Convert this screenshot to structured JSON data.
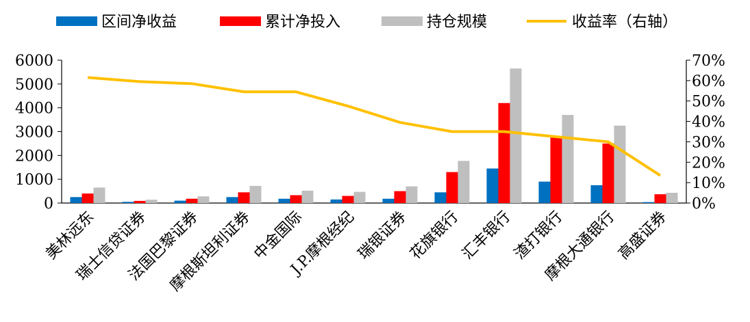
{
  "chart_data": {
    "type": "bar",
    "categories": [
      "美林远东",
      "瑞士信贷证券",
      "法国巴黎证券",
      "摩根斯坦利证券",
      "中金国际",
      "J.P.摩根经纪",
      "瑞银证券",
      "花旗银行",
      "汇丰银行",
      "渣打银行",
      "摩根大通银行",
      "高盛证券"
    ],
    "series": [
      {
        "name": "区间净收益",
        "kind": "bar",
        "axis": "left",
        "color": "#0070C0",
        "values": [
          250,
          50,
          100,
          250,
          180,
          150,
          180,
          450,
          1450,
          900,
          750,
          40
        ]
      },
      {
        "name": "累计净投入",
        "kind": "bar",
        "axis": "left",
        "color": "#FF0000",
        "values": [
          400,
          90,
          180,
          450,
          330,
          300,
          500,
          1300,
          4200,
          2750,
          2500,
          370
        ]
      },
      {
        "name": "持仓规模",
        "kind": "bar",
        "axis": "left",
        "color": "#BFBFBF",
        "values": [
          650,
          140,
          280,
          720,
          520,
          470,
          700,
          1770,
          5650,
          3700,
          3250,
          430
        ]
      },
      {
        "name": "收益率（右轴）",
        "kind": "line",
        "axis": "right",
        "color": "#FFC000",
        "values": [
          0.615,
          0.595,
          0.585,
          0.545,
          0.545,
          0.475,
          0.395,
          0.35,
          0.35,
          0.325,
          0.3,
          0.135
        ]
      }
    ],
    "y_left": {
      "min": 0,
      "max": 6000,
      "ticks": [
        "0",
        "1000",
        "2000",
        "3000",
        "4000",
        "5000",
        "6000"
      ]
    },
    "y_right": {
      "min": 0,
      "max": 0.7,
      "ticks": [
        "0%",
        "10%",
        "20%",
        "30%",
        "40%",
        "50%",
        "60%",
        "70%"
      ]
    },
    "legend_position": "top",
    "grid": false
  }
}
